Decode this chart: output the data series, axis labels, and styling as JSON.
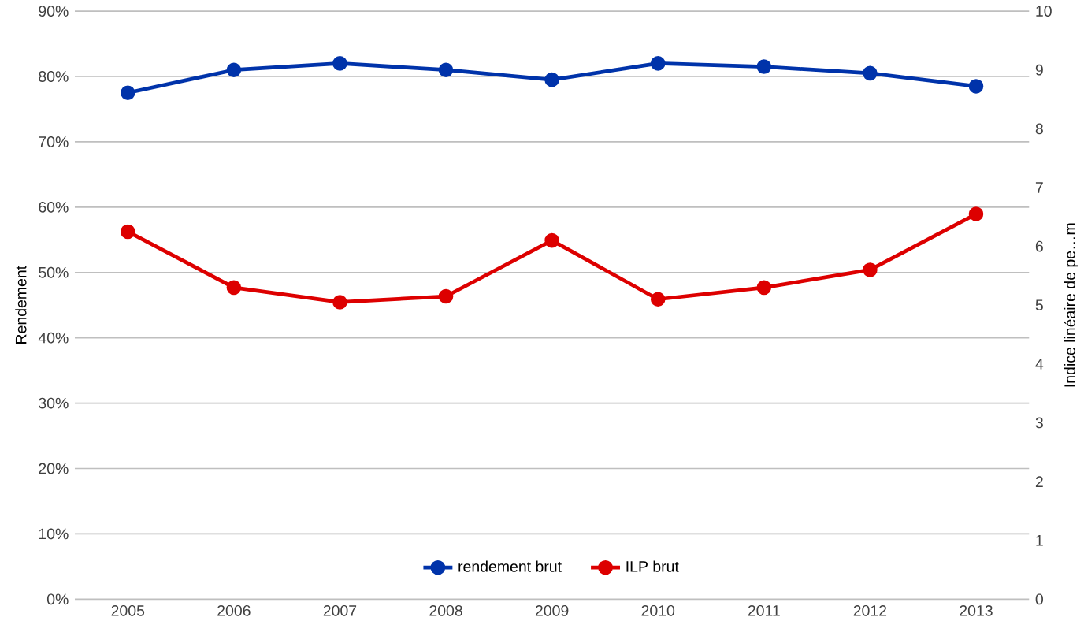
{
  "chart_data": {
    "type": "line",
    "ylabel": "Rendement",
    "y2label": "Indice linéaire de pe…m",
    "categories": [
      "2005",
      "2006",
      "2007",
      "2008",
      "2009",
      "2010",
      "2011",
      "2012",
      "2013"
    ],
    "series": [
      {
        "name": "rendement brut",
        "color": "#0033aa",
        "values": [
          77.5,
          81,
          82,
          81,
          79.5,
          82,
          81.5,
          80.5,
          78.5
        ]
      },
      {
        "name": "ILP brut",
        "color": "#dd0000",
        "axis": "y2",
        "values": [
          6.25,
          5.3,
          5.05,
          5.15,
          6.1,
          5.1,
          5.3,
          5.6,
          6.55
        ]
      }
    ],
    "ylim": [
      0,
      90
    ],
    "yticks": [
      {
        "value": 0,
        "label": "0%"
      },
      {
        "value": 10,
        "label": "10%"
      },
      {
        "value": 20,
        "label": "20%"
      },
      {
        "value": 30,
        "label": "30%"
      },
      {
        "value": 40,
        "label": "40%"
      },
      {
        "value": 50,
        "label": "50%"
      },
      {
        "value": 60,
        "label": "60%"
      },
      {
        "value": 70,
        "label": "70%"
      },
      {
        "value": 80,
        "label": "80%"
      },
      {
        "value": 90,
        "label": "90%"
      }
    ],
    "y2lim": [
      0,
      10
    ],
    "y2ticks": [
      0,
      1,
      2,
      3,
      4,
      5,
      6,
      7,
      8,
      9,
      10
    ],
    "grid": "y",
    "legend": "bottom",
    "marker": "circle",
    "line_style": "solid"
  }
}
